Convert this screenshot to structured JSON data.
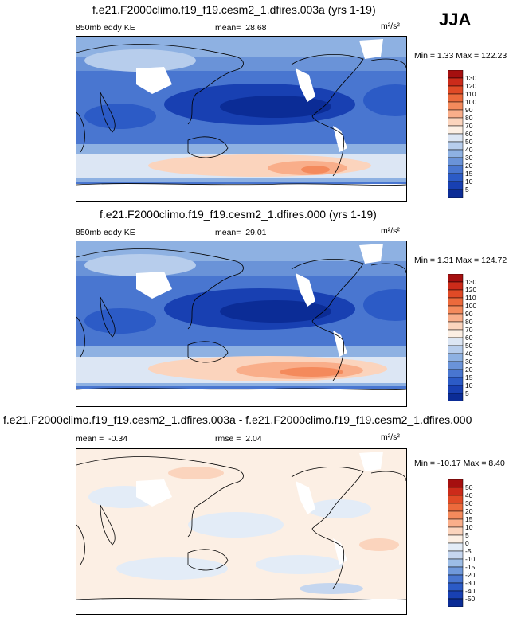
{
  "season": "JJA",
  "chart_data": [
    {
      "type": "heatmap",
      "title": "f.e21.F2000climo.f19_f19.cesm2_1.dfires.003a (yrs 1-19)",
      "variable": "850mb eddy KE",
      "mean_label": "mean=",
      "mean": "28.68",
      "units": "m²/s²",
      "min_label": "Min =",
      "min": "1.33",
      "max_label": "Max =",
      "max": "122.23",
      "colorbar_levels": [
        "130",
        "120",
        "110",
        "100",
        "90",
        "80",
        "70",
        "60",
        "50",
        "40",
        "30",
        "20",
        "15",
        "10",
        "5"
      ],
      "colorbar_colors": [
        "#a50f0f",
        "#cc2b1a",
        "#e04a26",
        "#ec6a3c",
        "#f48a5c",
        "#f9ae8a",
        "#fbd4bd",
        "#fcefe4",
        "#dce6f4",
        "#b7cdec",
        "#8eb1e2",
        "#6a93d8",
        "#4976d0",
        "#2c5bc6",
        "#1840b2",
        "#0b2c96"
      ]
    },
    {
      "type": "heatmap",
      "title": "f.e21.F2000climo.f19_f19.cesm2_1.dfires.000 (yrs 1-19)",
      "variable": "850mb eddy KE",
      "mean_label": "mean=",
      "mean": "29.01",
      "units": "m²/s²",
      "min_label": "Min =",
      "min": "1.31",
      "max_label": "Max =",
      "max": "124.72",
      "colorbar_levels": [
        "130",
        "120",
        "110",
        "100",
        "90",
        "80",
        "70",
        "60",
        "50",
        "40",
        "30",
        "20",
        "15",
        "10",
        "5"
      ],
      "colorbar_colors": [
        "#a50f0f",
        "#cc2b1a",
        "#e04a26",
        "#ec6a3c",
        "#f48a5c",
        "#f9ae8a",
        "#fbd4bd",
        "#fcefe4",
        "#dce6f4",
        "#b7cdec",
        "#8eb1e2",
        "#6a93d8",
        "#4976d0",
        "#2c5bc6",
        "#1840b2",
        "#0b2c96"
      ]
    },
    {
      "type": "heatmap",
      "title": "f.e21.F2000climo.f19_f19.cesm2_1.dfires.003a - f.e21.F2000climo.f19_f19.cesm2_1.dfires.000",
      "mean_label": "mean =",
      "mean": "-0.34",
      "rmse_label": "rmse =",
      "rmse": "2.04",
      "units": "m²/s²",
      "min_label": "Min =",
      "min": "-10.17",
      "max_label": "Max =",
      "max": "8.40",
      "colorbar_levels": [
        "50",
        "40",
        "30",
        "20",
        "15",
        "10",
        "5",
        "0",
        "-5",
        "-10",
        "-15",
        "-20",
        "-30",
        "-40",
        "-50"
      ],
      "colorbar_colors": [
        "#a50f0f",
        "#cc2b1a",
        "#e04a26",
        "#ec6a3c",
        "#f48a5c",
        "#f9ae8a",
        "#fbd4bd",
        "#fcefe4",
        "#e3ecf7",
        "#c5d6ef",
        "#9dbde6",
        "#7099db",
        "#4976d0",
        "#2c5bc6",
        "#1840b2",
        "#0b2c96"
      ]
    }
  ]
}
